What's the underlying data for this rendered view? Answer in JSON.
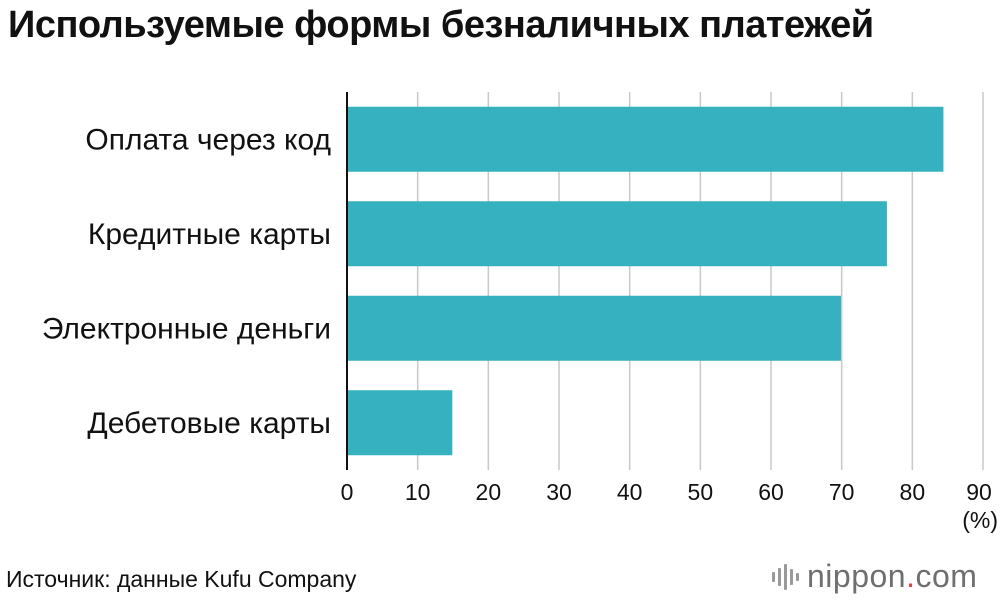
{
  "chart_data": {
    "type": "bar",
    "orientation": "horizontal",
    "title": "Используемые формы безналичных платежей",
    "categories": [
      "Оплата через код",
      "Кредитные карты",
      "Электронные деньги",
      "Дебетовые карты"
    ],
    "values": [
      84.4,
      76.4,
      69.9,
      14.9
    ],
    "xlabel": "(%)",
    "ylabel": "",
    "xlim": [
      0,
      90
    ],
    "xticks": [
      0,
      10,
      20,
      30,
      40,
      50,
      60,
      70,
      80,
      90
    ],
    "grid": true,
    "bar_color": "#35b1bf",
    "grid_color": "#c8c8c8"
  },
  "footer": {
    "source": "Источник: данные Kufu Company",
    "brand_main": "nippon",
    "brand_dot": ".",
    "brand_tld": "com"
  }
}
